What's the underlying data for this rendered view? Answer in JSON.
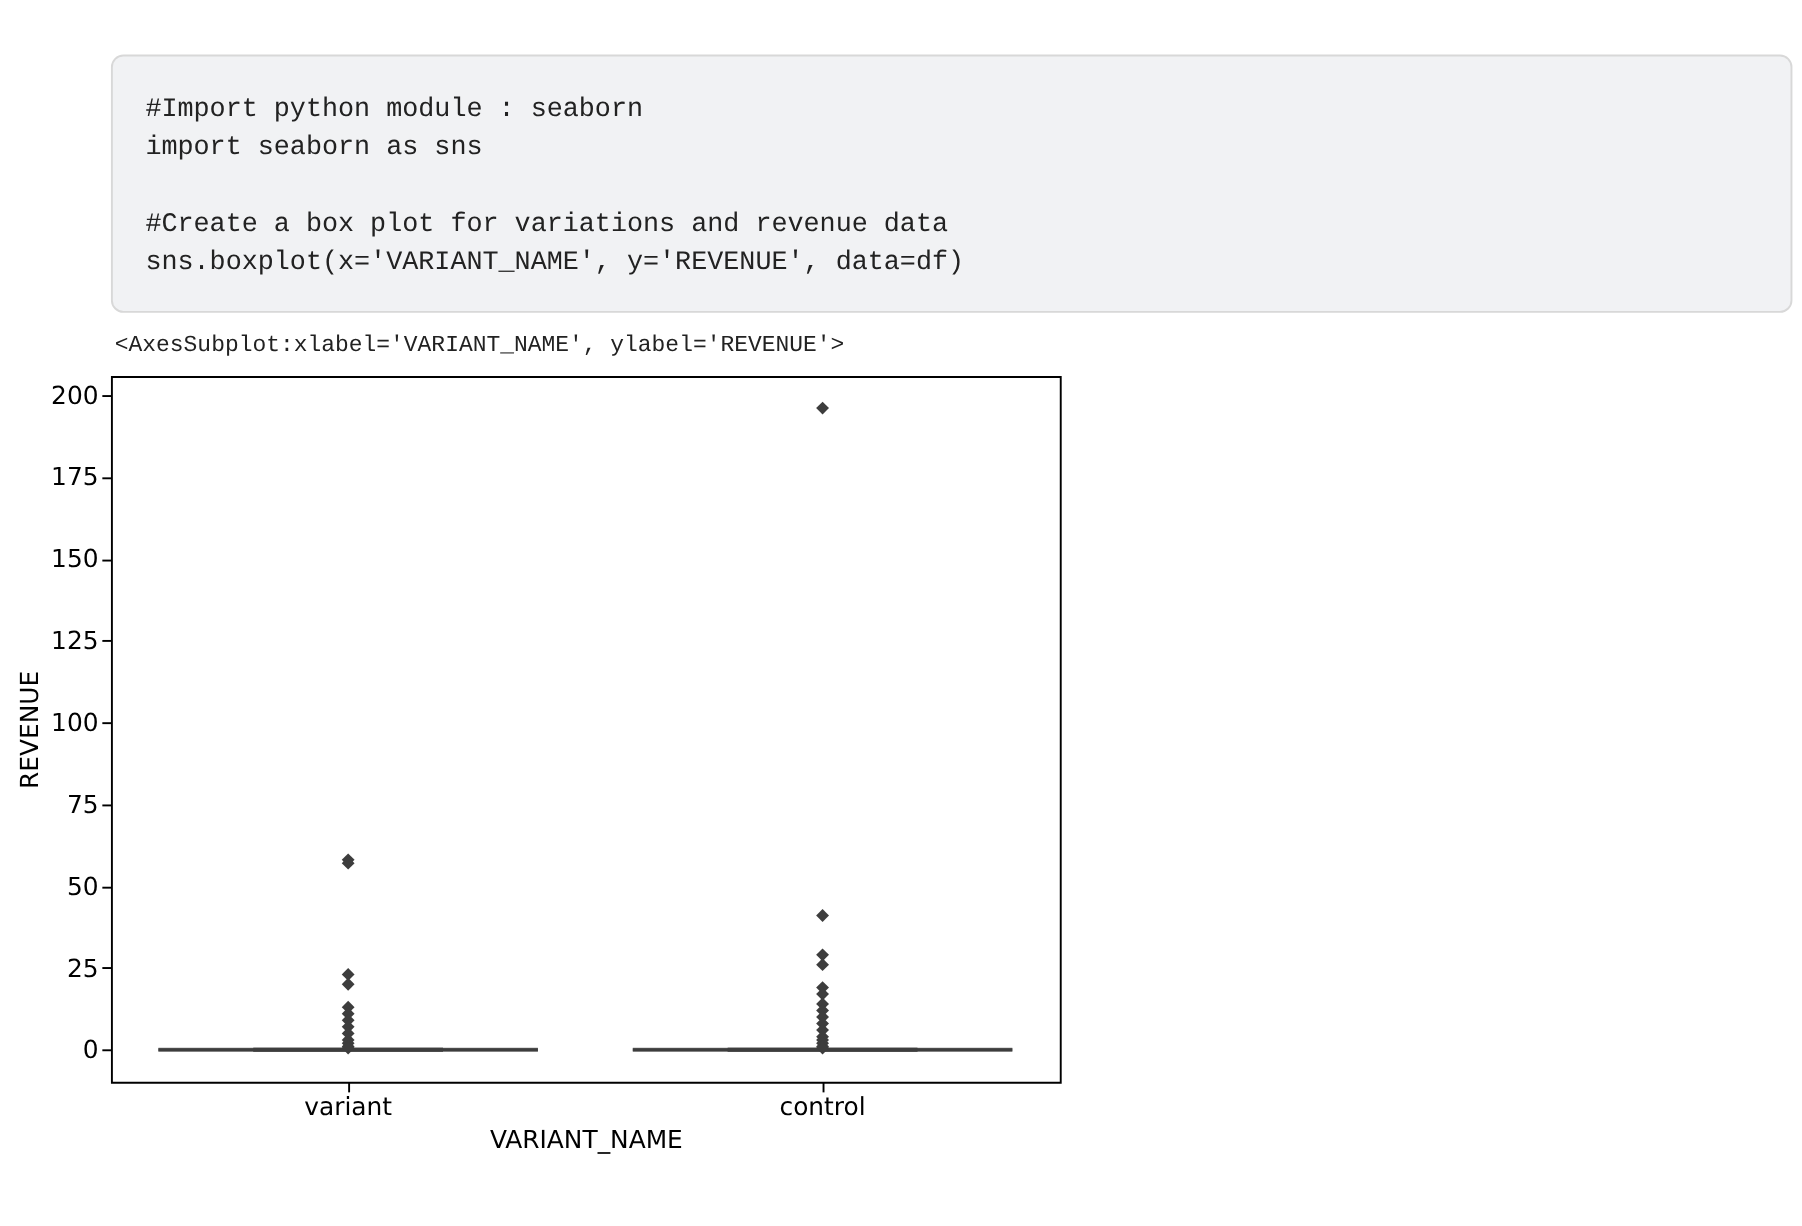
{
  "chart_data": {
    "type": "box",
    "xlabel": "VARIANT_NAME",
    "ylabel": "REVENUE",
    "categories": [
      "variant",
      "control"
    ],
    "ylim": [
      -9.8,
      205.8
    ],
    "yticks": [
      0,
      25,
      50,
      75,
      100,
      125,
      150,
      175,
      200
    ],
    "grid": false,
    "marker": "diamond",
    "color": "#3d3d3d",
    "boxes": [
      {
        "low": 0,
        "q1": 0,
        "median": 0,
        "q3": 0,
        "high": 0,
        "outliers": [
          58,
          57,
          23,
          20,
          13,
          11,
          9,
          7,
          5,
          3,
          2,
          1,
          0.5
        ]
      },
      {
        "low": 0,
        "q1": 0,
        "median": 0,
        "q3": 0,
        "high": 0,
        "outliers": [
          196,
          41,
          29,
          26,
          19,
          17,
          14,
          12,
          10,
          8,
          6,
          4,
          3,
          2,
          1,
          0.5
        ]
      }
    ],
    "annotations": [
      "#Import python module : seaborn",
      "import seaborn as sns",
      "#Create a box plot for variations and revenue data",
      "sns.boxplot(x='VARIANT_NAME', y='REVENUE', data=df)",
      "<AxesSubplot:xlabel='VARIANT_NAME', ylabel='REVENUE'>"
    ]
  }
}
